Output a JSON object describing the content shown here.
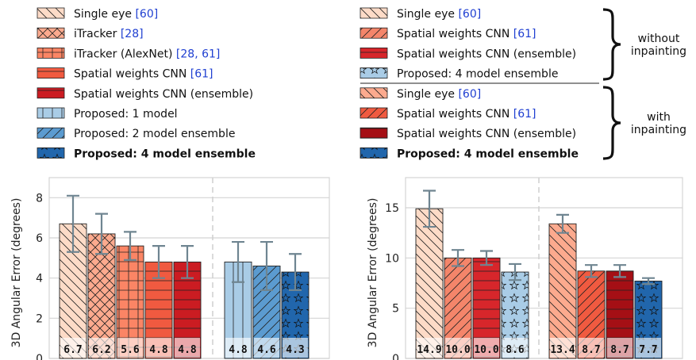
{
  "legend_left": [
    {
      "label": "Single eye ",
      "cite": "[60]",
      "bold": false,
      "fill": "#fddbc7",
      "pattern": "back"
    },
    {
      "label": "iTracker ",
      "cite": "[28]",
      "bold": false,
      "fill": "#fcaa8e",
      "pattern": "cross"
    },
    {
      "label": "iTracker (AlexNet) ",
      "cite": "[28, 61]",
      "bold": false,
      "fill": "#fb8565",
      "pattern": "grid"
    },
    {
      "label": "Spatial weights CNN ",
      "cite": "[61]",
      "bold": false,
      "fill": "#f05a40",
      "pattern": "horiz"
    },
    {
      "label": "Spatial weights CNN (ensemble)",
      "cite": "",
      "bold": false,
      "fill": "#cb1c22",
      "pattern": "horiz-dark"
    },
    {
      "label": "Proposed: 1 model",
      "cite": "",
      "bold": false,
      "fill": "#a9cce6",
      "pattern": "vert"
    },
    {
      "label": "Proposed: 2 model ensemble",
      "cite": "",
      "bold": false,
      "fill": "#5b9bd0",
      "pattern": "fwd"
    },
    {
      "label": "Proposed: 4 model ensemble",
      "cite": "",
      "bold": true,
      "fill": "#2166ac",
      "pattern": "star"
    }
  ],
  "legend_right": [
    {
      "label": "Single eye ",
      "cite": "[60]",
      "bold": false,
      "fill": "#fddbc7",
      "pattern": "back"
    },
    {
      "label": "Spatial weights CNN ",
      "cite": "[61]",
      "bold": false,
      "fill": "#f4856a",
      "pattern": "fwd"
    },
    {
      "label": "Spatial weights CNN (ensemble)",
      "cite": "",
      "bold": false,
      "fill": "#d7262b",
      "pattern": "horiz-dark"
    },
    {
      "label": "Proposed: 4 model ensemble",
      "cite": "",
      "bold": false,
      "fill": "#a9cce6",
      "pattern": "star"
    },
    {
      "label": "Single eye ",
      "cite": "[60]",
      "bold": false,
      "fill": "#fcaa8e",
      "pattern": "back"
    },
    {
      "label": "Spatial weights CNN ",
      "cite": "[61]",
      "bold": false,
      "fill": "#f05a40",
      "pattern": "fwd"
    },
    {
      "label": "Spatial weights CNN (ensemble)",
      "cite": "",
      "bold": false,
      "fill": "#a50f15",
      "pattern": "horiz-dark"
    },
    {
      "label": "Proposed: 4 model ensemble",
      "cite": "",
      "bold": true,
      "fill": "#2166ac",
      "pattern": "star"
    }
  ],
  "brace_labels": {
    "without": [
      "without",
      "inpainting"
    ],
    "with": [
      "with",
      "inpainting"
    ]
  },
  "chart_data": [
    {
      "type": "bar",
      "ylabel": "3D Angular Error (degrees)",
      "ylim": [
        0,
        9
      ],
      "yticks": [
        0,
        2,
        4,
        6,
        8
      ],
      "grid": true,
      "groups": [
        {
          "bars": [
            {
              "value": 6.7,
              "err": 1.4,
              "label": "6.7",
              "fill": "#fddbc7",
              "pattern": "back"
            },
            {
              "value": 6.2,
              "err": 1.0,
              "label": "6.2",
              "fill": "#fcaa8e",
              "pattern": "cross"
            },
            {
              "value": 5.6,
              "err": 0.7,
              "label": "5.6",
              "fill": "#fb8565",
              "pattern": "grid"
            },
            {
              "value": 4.8,
              "err": 0.8,
              "label": "4.8",
              "fill": "#f05a40",
              "pattern": "horiz"
            },
            {
              "value": 4.8,
              "err": 0.8,
              "label": "4.8",
              "fill": "#cb1c22",
              "pattern": "horiz-dark"
            }
          ]
        },
        {
          "bars": [
            {
              "value": 4.8,
              "err": 1.0,
              "label": "4.8",
              "fill": "#a9cce6",
              "pattern": "vert"
            },
            {
              "value": 4.6,
              "err": 1.2,
              "label": "4.6",
              "fill": "#5b9bd0",
              "pattern": "fwd"
            },
            {
              "value": 4.3,
              "err": 0.9,
              "label": "4.3",
              "fill": "#2166ac",
              "pattern": "star"
            }
          ]
        }
      ]
    },
    {
      "type": "bar",
      "ylabel": "3D Angular Error (degrees)",
      "ylim": [
        0,
        18
      ],
      "yticks": [
        0,
        5,
        10,
        15
      ],
      "grid": true,
      "groups": [
        {
          "bars": [
            {
              "value": 14.9,
              "err": 1.8,
              "label": "14.9",
              "fill": "#fddbc7",
              "pattern": "back"
            },
            {
              "value": 10.0,
              "err": 0.8,
              "label": "10.0",
              "fill": "#f4856a",
              "pattern": "fwd"
            },
            {
              "value": 10.0,
              "err": 0.7,
              "label": "10.0",
              "fill": "#d7262b",
              "pattern": "horiz-dark"
            },
            {
              "value": 8.6,
              "err": 0.8,
              "label": "8.6",
              "fill": "#a9cce6",
              "pattern": "star"
            }
          ]
        },
        {
          "bars": [
            {
              "value": 13.4,
              "err": 0.9,
              "label": "13.4",
              "fill": "#fcaa8e",
              "pattern": "back"
            },
            {
              "value": 8.7,
              "err": 0.6,
              "label": "8.7",
              "fill": "#f05a40",
              "pattern": "fwd"
            },
            {
              "value": 8.7,
              "err": 0.6,
              "label": "8.7",
              "fill": "#a50f15",
              "pattern": "horiz-dark"
            },
            {
              "value": 7.7,
              "err": 0.3,
              "label": "7.7",
              "fill": "#2166ac",
              "pattern": "star"
            }
          ]
        }
      ]
    }
  ]
}
